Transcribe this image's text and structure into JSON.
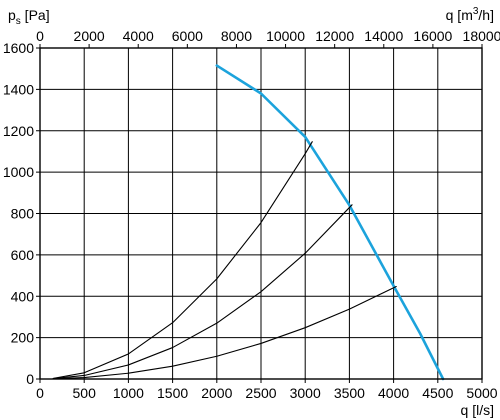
{
  "chart_data": {
    "type": "line",
    "title": "",
    "x_axis_bottom": {
      "label": "q [l/s]",
      "range": [
        0,
        5000
      ],
      "ticks": [
        0,
        500,
        1000,
        1500,
        2000,
        2500,
        3000,
        3500,
        4000,
        4500,
        5000
      ]
    },
    "x_axis_top": {
      "label_main": "q [m",
      "label_sup": "3",
      "label_end": "/h]",
      "range": [
        0,
        18000
      ],
      "ticks": [
        0,
        2000,
        4000,
        6000,
        8000,
        10000,
        12000,
        14000,
        16000,
        18000
      ]
    },
    "y_axis": {
      "label_main": "p",
      "label_sub": "s",
      "label_end": " [Pa]",
      "range": [
        0,
        1600
      ],
      "ticks": [
        0,
        200,
        400,
        600,
        800,
        1000,
        1200,
        1400,
        1600
      ]
    },
    "grid": true,
    "legend": "none",
    "series": [
      {
        "color": "#1ca3dc",
        "style": "fan-curve",
        "x": [
          2000,
          2500,
          3000,
          3500,
          4000,
          4300,
          4560
        ],
        "y": [
          1515,
          1380,
          1170,
          840,
          450,
          220,
          0
        ]
      },
      {
        "color": "#000000",
        "style": "system-curve",
        "x": [
          150,
          500,
          1000,
          1500,
          2000,
          2500,
          3000,
          3080
        ],
        "y": [
          3,
          30,
          121,
          272,
          484,
          756,
          1089,
          1147
        ]
      },
      {
        "color": "#000000",
        "style": "system-curve",
        "x": [
          150,
          500,
          1000,
          1500,
          2000,
          2500,
          3000,
          3530
        ],
        "y": [
          2,
          17,
          68,
          152,
          270,
          422,
          608,
          842
        ]
      },
      {
        "color": "#000000",
        "style": "system-curve",
        "x": [
          150,
          500,
          1000,
          1500,
          2000,
          2500,
          3000,
          3500,
          4030
        ],
        "y": [
          1,
          7,
          28,
          62,
          110,
          172,
          248,
          338,
          447
        ]
      }
    ]
  }
}
